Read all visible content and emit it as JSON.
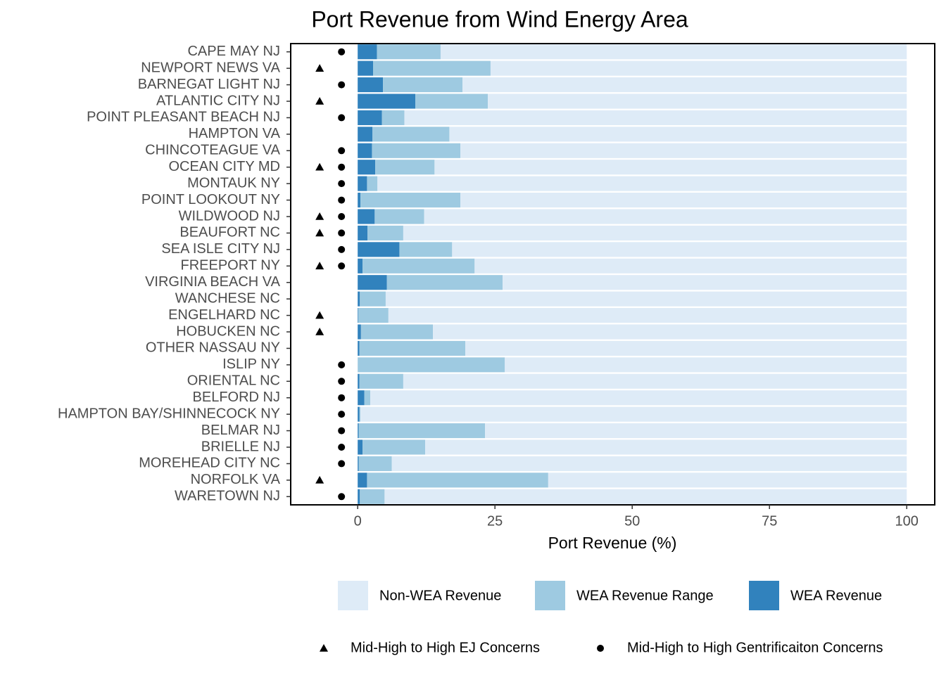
{
  "chart_data": {
    "type": "bar",
    "orientation": "horizontal",
    "stacked": true,
    "title": "Port Revenue from Wind Energy Area",
    "x_label": "Port Revenue (%)",
    "categories": [
      "CAPE MAY NJ",
      "NEWPORT NEWS VA",
      "BARNEGAT LIGHT NJ",
      "ATLANTIC CITY NJ",
      "POINT PLEASANT BEACH NJ",
      "HAMPTON VA",
      "CHINCOTEAGUE VA",
      "OCEAN CITY MD",
      "MONTAUK NY",
      "POINT LOOKOUT NY",
      "WILDWOOD NJ",
      "BEAUFORT NC",
      "SEA ISLE CITY NJ",
      "FREEPORT NY",
      "VIRGINIA BEACH VA",
      "WANCHESE NC",
      "ENGELHARD NC",
      "HOBUCKEN NC",
      "OTHER NASSAU NY",
      "ISLIP NY",
      "ORIENTAL NC",
      "BELFORD NJ",
      "HAMPTON BAY/SHINNECOCK NY",
      "BELMAR NJ",
      "BRIELLE NJ",
      "MOREHEAD CITY NC",
      "NORFOLK VA",
      "WARETOWN NJ"
    ],
    "series": [
      {
        "name": "WEA Revenue",
        "color": "#3182bd",
        "values": [
          3.5,
          2.8,
          4.6,
          10.5,
          4.4,
          2.7,
          2.6,
          3.2,
          1.7,
          0.5,
          3.1,
          1.8,
          7.6,
          0.9,
          5.3,
          0.4,
          0.1,
          0.6,
          0.3,
          0,
          0.3,
          1.2,
          0.3,
          0.2,
          0.9,
          0.2,
          1.7,
          0.4
        ]
      },
      {
        "name": "WEA Revenue Range",
        "color": "#9ecae1",
        "values": [
          11.6,
          21.4,
          14.5,
          13.2,
          4.1,
          14.0,
          16.1,
          10.8,
          1.9,
          18.2,
          9.0,
          6.5,
          9.6,
          20.4,
          21.1,
          4.7,
          5.5,
          13.1,
          19.3,
          26.8,
          8.0,
          1.1,
          0.2,
          23.0,
          11.4,
          6.0,
          33.0,
          4.5
        ]
      },
      {
        "name": "Non-WEA Revenue",
        "color": "#deebf7",
        "values": [
          84.9,
          75.8,
          80.9,
          76.3,
          91.5,
          83.3,
          81.3,
          86.0,
          96.4,
          81.3,
          87.9,
          91.7,
          82.8,
          78.7,
          73.6,
          94.9,
          94.4,
          86.3,
          80.4,
          73.2,
          91.7,
          97.7,
          99.5,
          76.8,
          87.7,
          93.8,
          65.3,
          95.1
        ]
      }
    ],
    "markers": [
      {
        "name": "Mid-High to High EJ Concerns",
        "shape": "triangle",
        "flags": [
          false,
          true,
          false,
          true,
          false,
          false,
          false,
          true,
          false,
          false,
          true,
          true,
          false,
          true,
          false,
          false,
          true,
          true,
          false,
          false,
          false,
          false,
          false,
          false,
          false,
          false,
          true,
          false
        ]
      },
      {
        "name": "Mid-High to High Gentrificaiton Concerns",
        "shape": "circle",
        "flags": [
          true,
          false,
          true,
          false,
          true,
          false,
          true,
          true,
          true,
          true,
          true,
          true,
          true,
          true,
          false,
          false,
          false,
          false,
          false,
          true,
          true,
          true,
          true,
          true,
          true,
          true,
          false,
          true
        ]
      }
    ],
    "xlim": [
      -12.2,
      105.1
    ],
    "xticks": [
      0,
      25,
      50,
      75,
      100
    ]
  }
}
